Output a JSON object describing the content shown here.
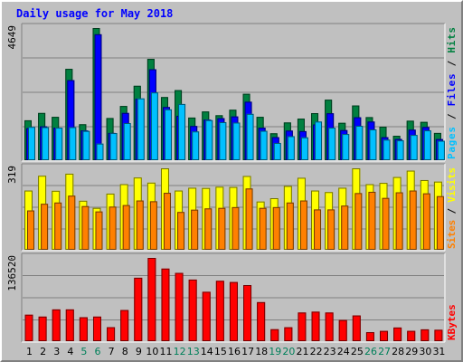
{
  "chart_data": {
    "type": "bar",
    "title": "Daily usage for May 2018",
    "categories": [
      "1",
      "2",
      "3",
      "4",
      "5",
      "6",
      "7",
      "8",
      "9",
      "10",
      "11",
      "12",
      "13",
      "14",
      "15",
      "16",
      "17",
      "18",
      "19",
      "20",
      "21",
      "22",
      "23",
      "24",
      "25",
      "26",
      "27",
      "28",
      "29",
      "30",
      "31"
    ],
    "weekend_days": [
      "5",
      "6",
      "12",
      "13",
      "19",
      "20",
      "26",
      "27"
    ],
    "panels": [
      {
        "id": "requests",
        "max_label": "4649",
        "ylim": [
          0,
          4649
        ],
        "grid": true,
        "legend": [
          "Pages",
          "Files",
          "Hits"
        ],
        "series": [
          {
            "name": "Hits",
            "color": "#008040",
            "values": [
              1403,
              1661,
              1524,
              3213,
              1264,
              4649,
              1483,
              1906,
              2617,
              3563,
              2220,
              2465,
              1499,
              1713,
              1581,
              1774,
              2335,
              1524,
              946,
              1327,
              1461,
              1655,
              2128,
              1314,
              1925,
              1515,
              1178,
              859,
              1389,
              1347,
              958
            ]
          },
          {
            "name": "Files",
            "color": "#0000ff",
            "values": [
              1124,
              1190,
              1143,
              2818,
              1049,
              4430,
              958,
              1662,
              2160,
              3199,
              1869,
              1561,
              1202,
              1428,
              1479,
              1539,
              2057,
              1143,
              812,
              1041,
              1022,
              1258,
              1650,
              1058,
              1510,
              1359,
              809,
              745,
              1074,
              1167,
              741
            ]
          },
          {
            "name": "Pages",
            "color": "#00c0ff",
            "values": [
              1170,
              1161,
              1143,
              1161,
              1029,
              583,
              954,
              1306,
              2174,
              2383,
              1789,
              1977,
              1011,
              1409,
              1338,
              1323,
              1629,
              1034,
              606,
              845,
              803,
              1359,
              1143,
              921,
              1209,
              1083,
              722,
              697,
              888,
              1049,
              683
            ]
          }
        ]
      },
      {
        "id": "visits",
        "max_label": "319",
        "ylim": [
          0,
          319
        ],
        "grid": true,
        "legend": [
          "Sites",
          "Visits"
        ],
        "series": [
          {
            "name": "Visits",
            "color": "#ffff00",
            "values": [
              232,
              290,
              231,
              298,
              192,
              164,
              220,
              257,
              283,
              263,
              319,
              232,
              243,
              242,
              247,
              246,
              289,
              189,
              202,
              250,
              282,
              232,
              226,
              243,
              319,
              257,
              262,
              285,
              310,
              273,
              267
            ]
          },
          {
            "name": "Sites",
            "color": "#ff8000",
            "values": [
              154,
              180,
              185,
              212,
              171,
              150,
              169,
              175,
              193,
              190,
              223,
              148,
              157,
              162,
              164,
              167,
              240,
              164,
              167,
              185,
              193,
              158,
              158,
              173,
              222,
              227,
              203,
              225,
              232,
              221,
              210
            ]
          }
        ]
      },
      {
        "id": "kbytes",
        "max_label": "136520",
        "ylim": [
          0,
          136520
        ],
        "grid": true,
        "legend": [
          "KBytes"
        ],
        "series": [
          {
            "name": "KBytes",
            "color": "#ff0000",
            "values": [
              43400,
              40300,
              52100,
              52100,
              39300,
              40300,
              23000,
              51100,
              104000,
              136520,
              119000,
              112000,
              101000,
              81000,
              99000,
              97000,
              92000,
              64000,
              19600,
              22800,
              47000,
              48400,
              47000,
              34600,
              42200,
              14800,
              16800,
              22400,
              16900,
              19400,
              18700
            ]
          }
        ]
      }
    ]
  }
}
